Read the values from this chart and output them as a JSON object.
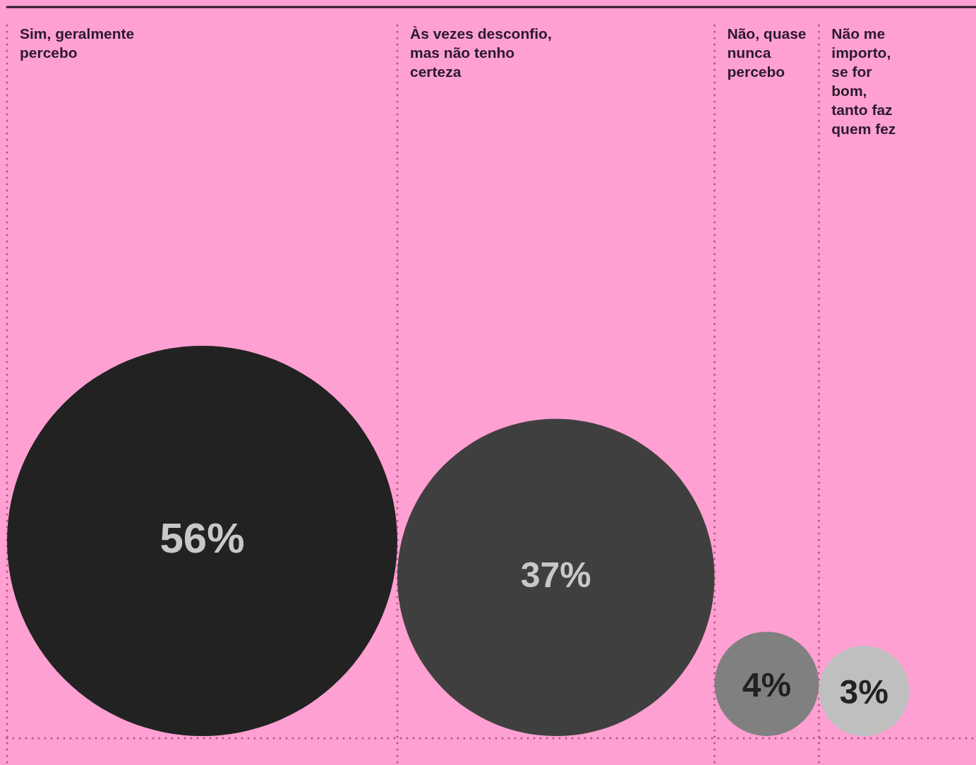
{
  "chart_data": {
    "type": "other",
    "categories": [
      "Sim, geralmente percebo",
      "Às vezes desconfio, mas não tenho certeza",
      "Não, quase nunca percebo",
      "Não me importo, se for bom, tanto faz quem fez"
    ],
    "values": [
      56,
      37,
      4,
      3
    ],
    "value_labels": [
      "56%",
      "37%",
      "4%",
      "3%"
    ],
    "colors": [
      "#222222",
      "#3f3f3f",
      "#808080",
      "#bfbfbf"
    ]
  }
}
